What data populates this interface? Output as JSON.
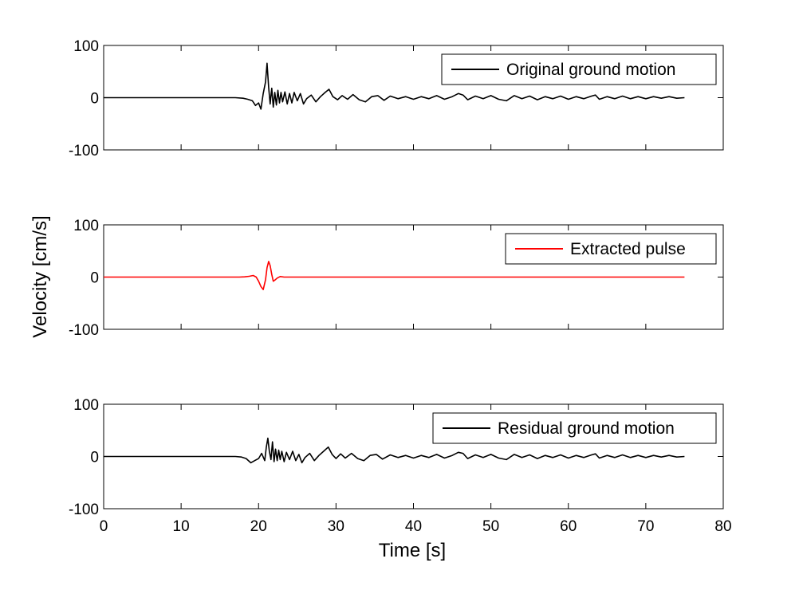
{
  "chart_data": {
    "type": "line",
    "shared_xlabel": "Time [s]",
    "shared_ylabel": "Velocity [cm/s]",
    "xlim": [
      0,
      80
    ],
    "x_ticks": [
      "0",
      "10",
      "20",
      "30",
      "40",
      "50",
      "60",
      "70",
      "80"
    ],
    "y_ticks": [
      "100",
      "0",
      "-100"
    ],
    "ylim": [
      -100,
      100
    ],
    "grid": false,
    "legend_placement": "top-right",
    "panels": [
      {
        "legend": "Original ground motion",
        "color": "#000000",
        "series": {
          "x": [
            0,
            17,
            18,
            18.6,
            19.2,
            19.6,
            20.0,
            20.3,
            20.6,
            20.9,
            21.1,
            21.3,
            21.5,
            21.7,
            21.9,
            22.1,
            22.3,
            22.5,
            22.7,
            22.9,
            23.1,
            23.4,
            23.7,
            24.0,
            24.3,
            24.6,
            25.0,
            25.4,
            25.8,
            26.2,
            26.8,
            27.4,
            28.0,
            28.6,
            29.1,
            29.6,
            30.2,
            30.8,
            31.5,
            32.2,
            33.0,
            33.8,
            34.6,
            35.4,
            36.2,
            37.0,
            38.0,
            39.0,
            40.0,
            41.0,
            42.0,
            43.0,
            44.0,
            45.0,
            45.8,
            46.4,
            47.0,
            48.0,
            49.0,
            50.0,
            51.0,
            52.0,
            53.0,
            54.0,
            55.0,
            56.0,
            57.0,
            58.0,
            59.0,
            60.0,
            61.0,
            62.0,
            63.0,
            63.5,
            64.0,
            65.0,
            66.0,
            67.0,
            68.0,
            69.0,
            70.0,
            71.0,
            72.0,
            73.0,
            74.0,
            75.0
          ],
          "y": [
            0,
            0,
            -1,
            -3,
            -6,
            -15,
            -10,
            -22,
            8,
            30,
            66,
            20,
            -12,
            18,
            -18,
            10,
            -14,
            14,
            -10,
            10,
            -8,
            11,
            -12,
            8,
            -10,
            10,
            -6,
            8,
            -12,
            -2,
            5,
            -8,
            2,
            10,
            16,
            2,
            -4,
            4,
            -3,
            6,
            -4,
            -8,
            2,
            4,
            -5,
            3,
            -2,
            2,
            -3,
            2,
            -2,
            4,
            -3,
            2,
            8,
            5,
            -4,
            3,
            -2,
            4,
            -3,
            -6,
            4,
            -2,
            3,
            -4,
            2,
            -2,
            3,
            -3,
            2,
            -2,
            3,
            5,
            -3,
            2,
            -2,
            3,
            -2,
            2,
            -2,
            2,
            -1,
            2,
            -1,
            0
          ]
        }
      },
      {
        "legend": "Extracted pulse",
        "color": "#ff0000",
        "series": {
          "x": [
            0,
            17.5,
            18.2,
            18.8,
            19.3,
            19.7,
            20.0,
            20.3,
            20.6,
            20.9,
            21.1,
            21.3,
            21.5,
            21.7,
            21.9,
            22.1,
            22.4,
            22.8,
            23.3,
            75.0
          ],
          "y": [
            0,
            0,
            0.5,
            1.5,
            3,
            0,
            -8,
            -18,
            -24,
            -5,
            18,
            30,
            22,
            5,
            -8,
            -6,
            -2,
            1,
            0,
            0
          ]
        }
      },
      {
        "legend": "Residual ground motion",
        "color": "#000000",
        "series": {
          "x": [
            0,
            17,
            17.8,
            18.4,
            19.0,
            19.5,
            20.0,
            20.4,
            20.8,
            21.0,
            21.2,
            21.4,
            21.6,
            21.8,
            22.0,
            22.2,
            22.4,
            22.6,
            22.8,
            23.0,
            23.3,
            23.6,
            24.0,
            24.4,
            24.8,
            25.2,
            25.6,
            26.0,
            26.6,
            27.2,
            27.8,
            28.4,
            29.0,
            29.5,
            30.0,
            30.6,
            31.2,
            32.0,
            32.8,
            33.6,
            34.4,
            35.2,
            36.0,
            37.0,
            38.0,
            39.0,
            40.0,
            41.0,
            42.0,
            43.0,
            44.0,
            45.0,
            45.8,
            46.4,
            47.0,
            48.0,
            49.0,
            50.0,
            51.0,
            52.0,
            53.0,
            54.0,
            55.0,
            56.0,
            57.0,
            58.0,
            59.0,
            60.0,
            61.0,
            62.0,
            63.0,
            63.5,
            64.0,
            65.0,
            66.0,
            67.0,
            68.0,
            69.0,
            70.0,
            71.0,
            72.0,
            73.0,
            74.0,
            75.0
          ],
          "y": [
            0,
            0,
            -1,
            -4,
            -12,
            -8,
            -4,
            6,
            -8,
            18,
            35,
            10,
            -6,
            28,
            -10,
            14,
            -8,
            12,
            -6,
            10,
            -10,
            8,
            -6,
            10,
            -8,
            4,
            -12,
            -2,
            6,
            -8,
            2,
            10,
            18,
            4,
            -4,
            5,
            -3,
            6,
            -4,
            -8,
            2,
            4,
            -5,
            3,
            -2,
            2,
            -3,
            2,
            -2,
            4,
            -3,
            2,
            8,
            6,
            -4,
            3,
            -2,
            4,
            -3,
            -6,
            4,
            -2,
            3,
            -4,
            2,
            -2,
            3,
            -3,
            2,
            -2,
            3,
            5,
            -3,
            2,
            -2,
            3,
            -2,
            2,
            -2,
            2,
            -1,
            2,
            -1,
            0
          ]
        }
      }
    ]
  }
}
